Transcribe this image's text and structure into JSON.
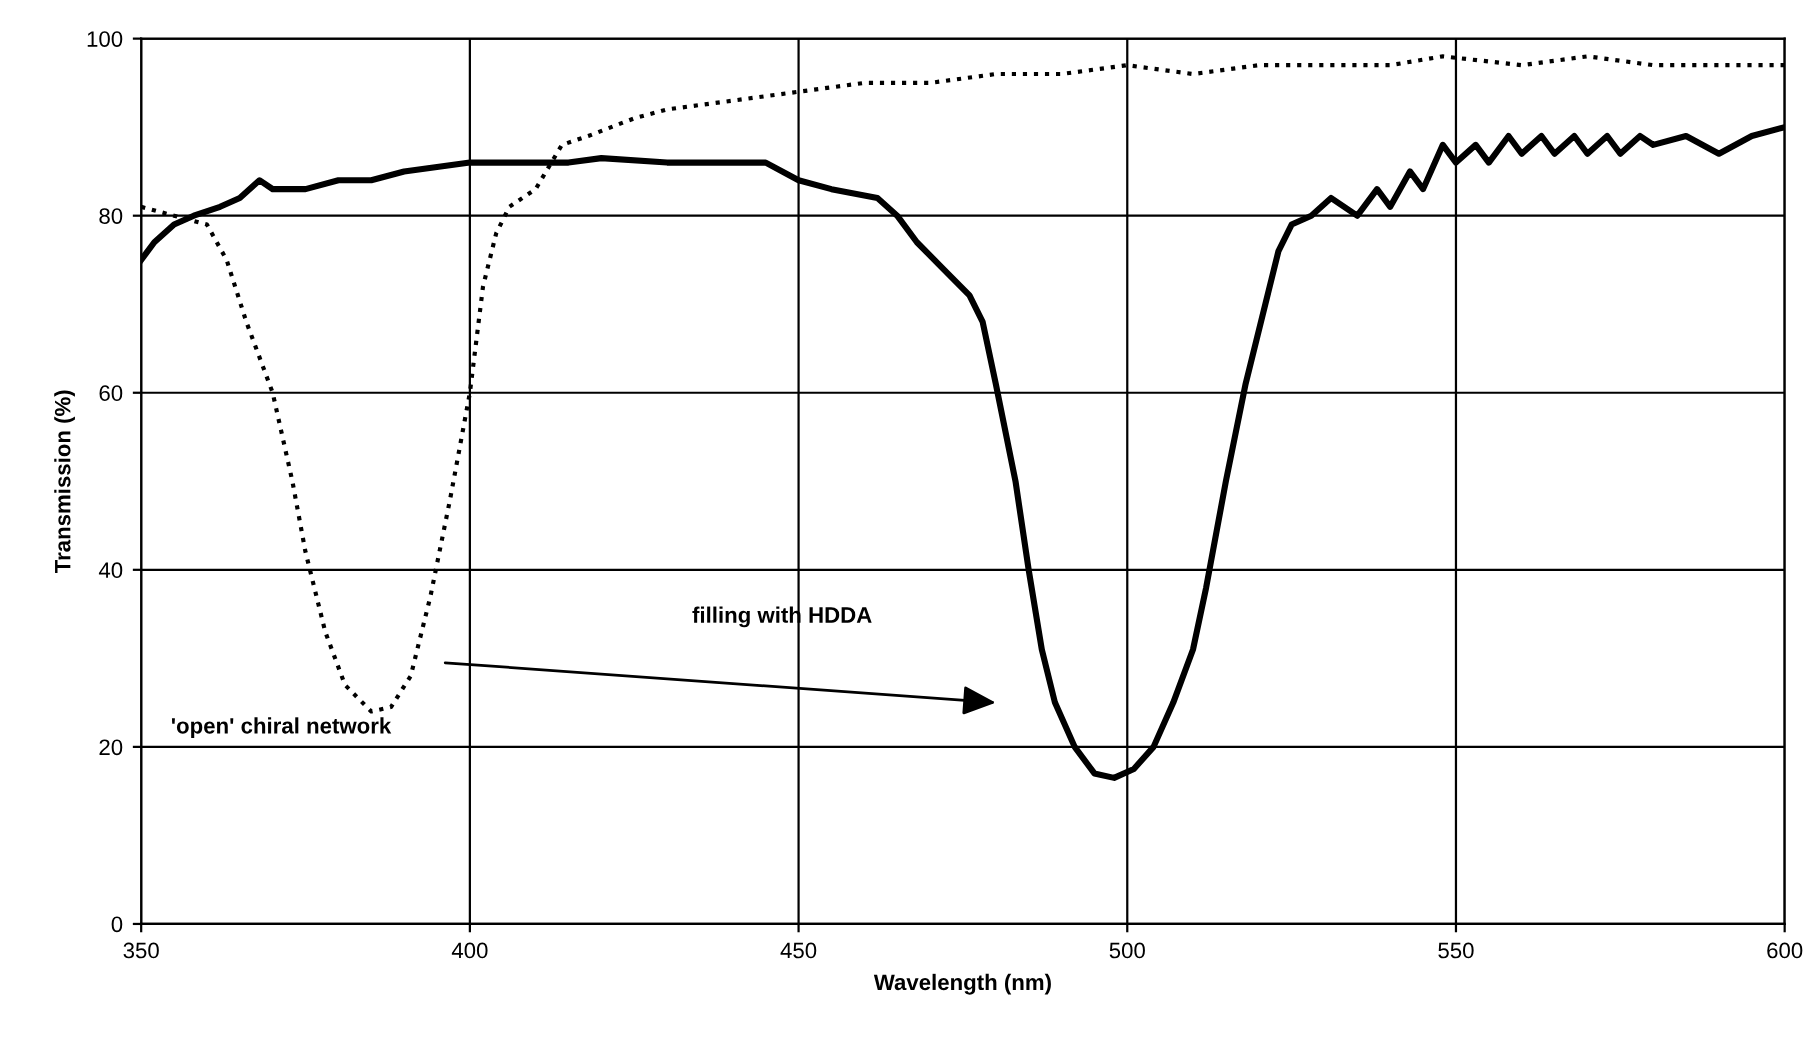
{
  "chart_data": {
    "type": "line",
    "xlabel": "Wavelength (nm)",
    "ylabel": "Transmission (%)",
    "xlim": [
      350,
      600
    ],
    "xticks": [
      350,
      400,
      450,
      500,
      550,
      600
    ],
    "ylim": [
      0,
      100
    ],
    "yticks": [
      0,
      20,
      40,
      60,
      80,
      100
    ],
    "grid": true,
    "legend": false,
    "series": [
      {
        "color": "#000000",
        "line_style": "dotted",
        "x": [
          350,
          355,
          360,
          363,
          366,
          370,
          373,
          375,
          378,
          381,
          385,
          388,
          391,
          394,
          397,
          400,
          402,
          404,
          406,
          410,
          414,
          418,
          425,
          430,
          440,
          450,
          460,
          470,
          480,
          490,
          500,
          510,
          520,
          530,
          540,
          548,
          560,
          570,
          580,
          590,
          600
        ],
        "values": [
          81,
          80,
          79,
          75,
          68,
          60,
          50,
          42,
          33,
          27,
          24,
          24.5,
          28,
          37,
          48,
          60,
          72,
          78,
          81,
          83,
          88,
          89,
          91,
          92,
          93,
          94,
          95,
          95,
          96,
          96,
          97,
          96,
          97,
          97,
          97,
          98,
          97,
          98,
          97,
          97,
          97
        ]
      },
      {
        "color": "#000000",
        "line_style": "solid",
        "x": [
          350,
          352,
          355,
          358,
          362,
          365,
          368,
          370,
          375,
          380,
          385,
          390,
          395,
          400,
          405,
          410,
          415,
          420,
          430,
          440,
          445,
          450,
          455,
          462,
          465,
          468,
          472,
          476,
          478,
          480,
          483,
          485,
          487,
          489,
          492,
          495,
          498,
          501,
          504,
          507,
          510,
          512,
          515,
          518,
          521,
          523,
          525,
          528,
          531,
          535,
          538,
          540,
          543,
          545,
          548,
          550,
          553,
          555,
          558,
          560,
          563,
          565,
          568,
          570,
          573,
          575,
          578,
          580,
          585,
          590,
          595,
          600
        ],
        "values": [
          75,
          77,
          79,
          80,
          81,
          82,
          84,
          83,
          83,
          84,
          84,
          85,
          85.5,
          86,
          86,
          86,
          86,
          86.5,
          86,
          86,
          86,
          84,
          83,
          82,
          80,
          77,
          74,
          71,
          68,
          61,
          50,
          40,
          31,
          25,
          20,
          17,
          16.5,
          17.5,
          20,
          25,
          31,
          38,
          50,
          61,
          70,
          76,
          79,
          80,
          82,
          80,
          83,
          81,
          85,
          83,
          88,
          86,
          88,
          86,
          89,
          87,
          89,
          87,
          89,
          87,
          89,
          87,
          89,
          88,
          89,
          87,
          89,
          90
        ]
      }
    ],
    "annotations": [
      "'open' chiral network",
      "filling with HDDA"
    ]
  }
}
